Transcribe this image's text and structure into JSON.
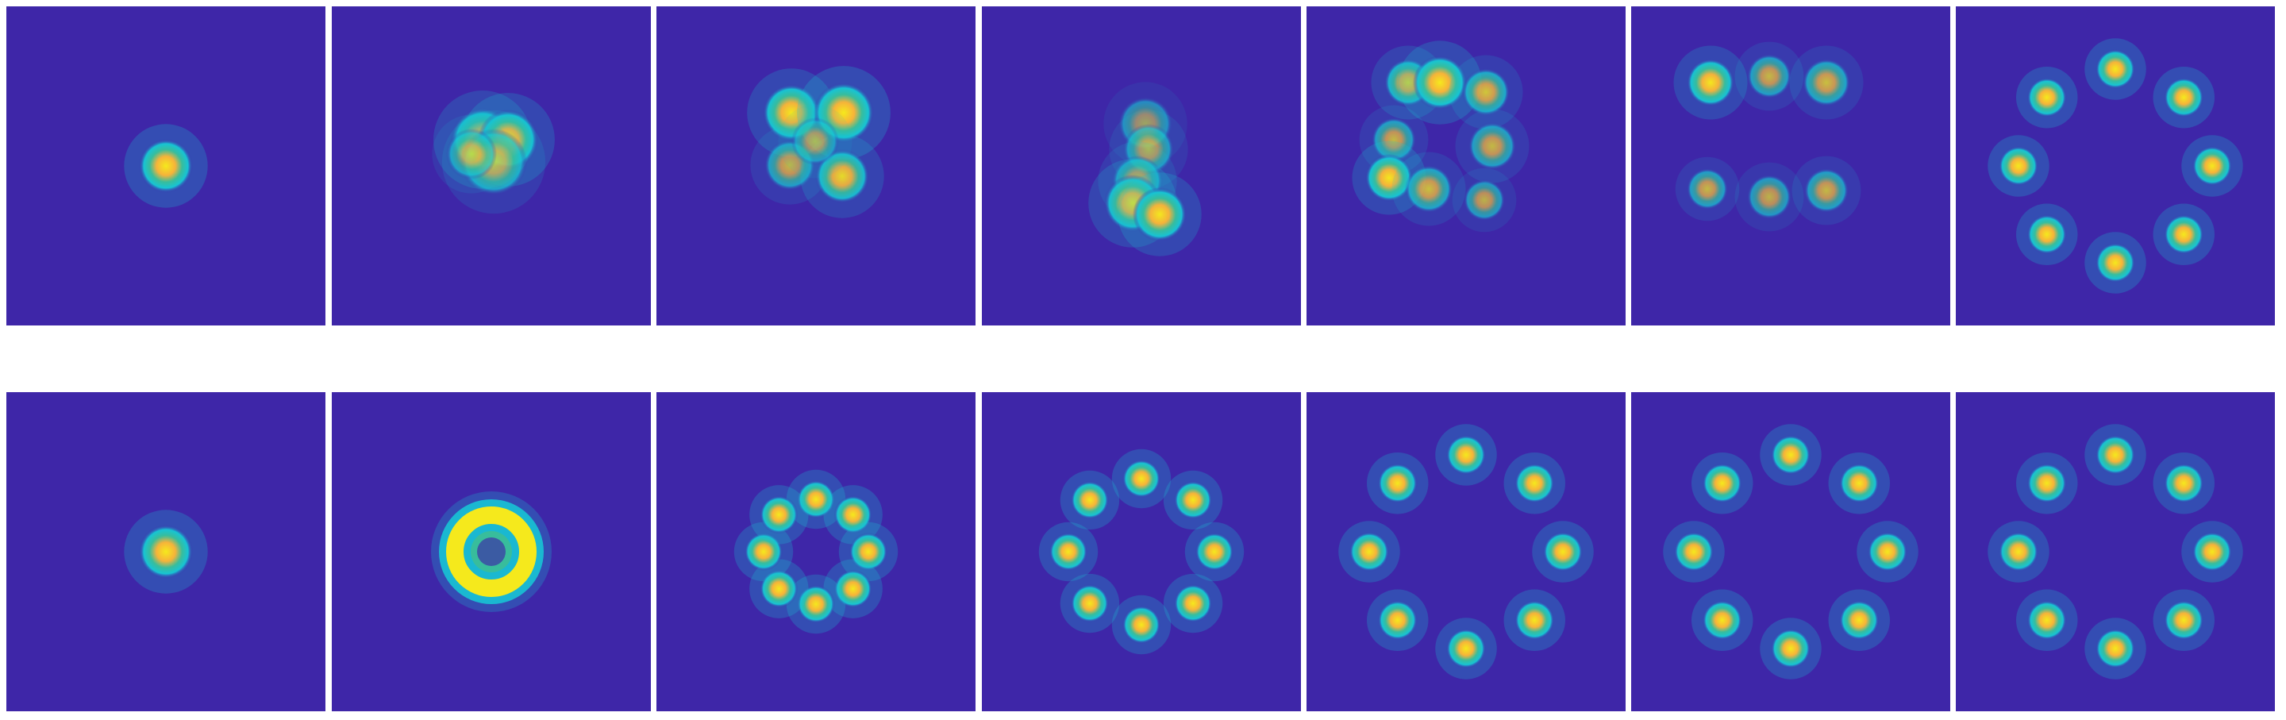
{
  "colors": {
    "background": "#3e26a8",
    "cyan": "#17c4d4",
    "green": "#38bd9c",
    "yellow_orange": "#f6b33a",
    "yellow": "#f5e91c"
  },
  "rows": [
    {
      "panels": [
        {
          "pattern": "single-blob"
        },
        {
          "pattern": "blurred-cluster"
        },
        {
          "pattern": "square-four-blobs"
        },
        {
          "pattern": "stretched-blob"
        },
        {
          "pattern": "rectangle-blobs"
        },
        {
          "pattern": "rectangle-dispersed"
        },
        {
          "pattern": "ring-of-8-large"
        }
      ]
    },
    {
      "panels": [
        {
          "pattern": "single-blob"
        },
        {
          "pattern": "donut"
        },
        {
          "pattern": "ring-of-8-small"
        },
        {
          "pattern": "ring-of-8-medium"
        },
        {
          "pattern": "ring-of-8-large"
        },
        {
          "pattern": "ring-of-8-large"
        },
        {
          "pattern": "ring-of-8-large"
        }
      ]
    }
  ]
}
